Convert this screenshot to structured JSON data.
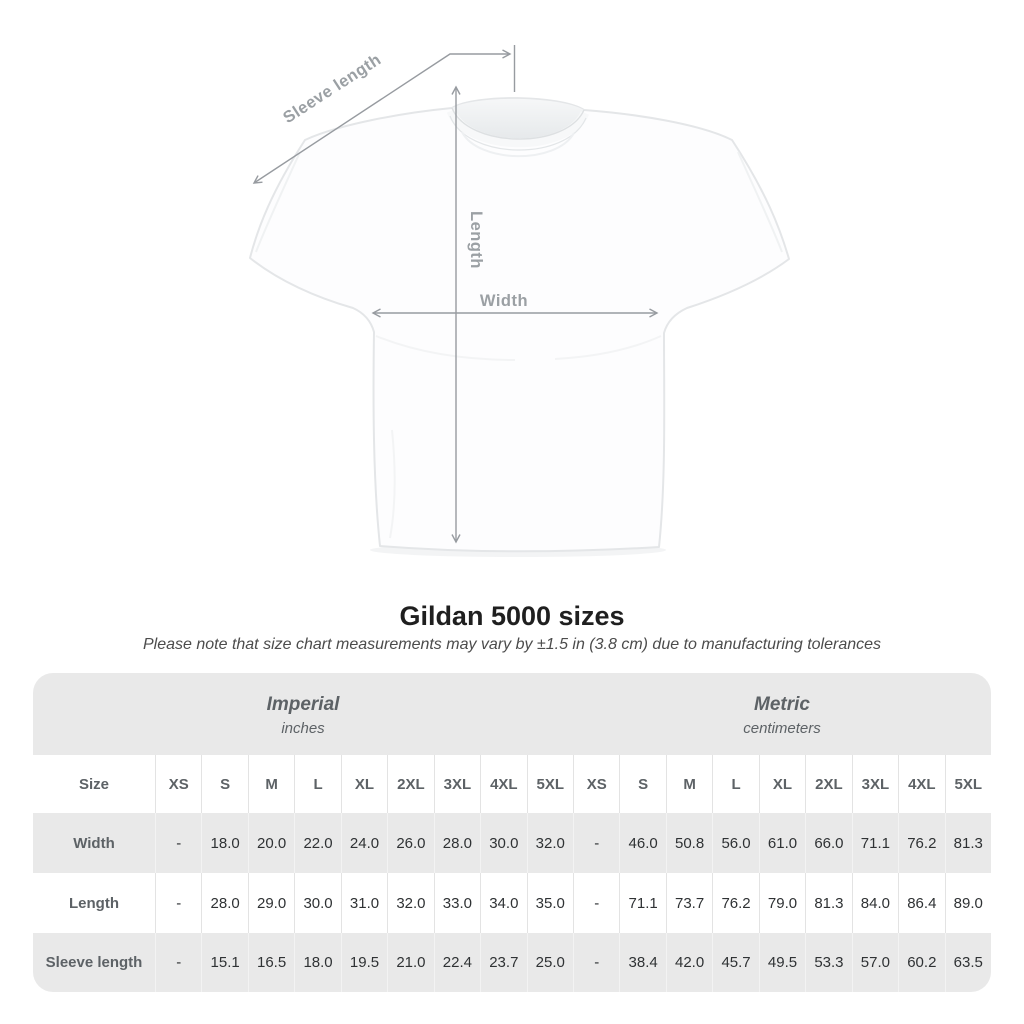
{
  "diagram": {
    "labels": {
      "sleeve_length": "Sleeve length",
      "length": "Length",
      "width": "Width"
    }
  },
  "header": {
    "title": "Gildan 5000 sizes",
    "subtitle": "Please note that size chart measurements may vary by ±1.5 in (3.8 cm) due to manufacturing tolerances"
  },
  "table": {
    "unit_groups": [
      {
        "name": "Imperial",
        "unit": "inches"
      },
      {
        "name": "Metric",
        "unit": "centimeters"
      }
    ],
    "size_header": "Size",
    "sizes": [
      "XS",
      "S",
      "M",
      "L",
      "XL",
      "2XL",
      "3XL",
      "4XL",
      "5XL"
    ],
    "rows": [
      {
        "label": "Width",
        "imperial": [
          "-",
          "18.0",
          "20.0",
          "22.0",
          "24.0",
          "26.0",
          "28.0",
          "30.0",
          "32.0"
        ],
        "metric": [
          "-",
          "46.0",
          "50.8",
          "56.0",
          "61.0",
          "66.0",
          "71.1",
          "76.2",
          "81.3"
        ]
      },
      {
        "label": "Length",
        "imperial": [
          "-",
          "28.0",
          "29.0",
          "30.0",
          "31.0",
          "32.0",
          "33.0",
          "34.0",
          "35.0"
        ],
        "metric": [
          "-",
          "71.1",
          "73.7",
          "76.2",
          "79.0",
          "81.3",
          "84.0",
          "86.4",
          "89.0"
        ]
      },
      {
        "label": "Sleeve length",
        "imperial": [
          "-",
          "15.1",
          "16.5",
          "18.0",
          "19.5",
          "21.0",
          "22.4",
          "23.7",
          "25.0"
        ],
        "metric": [
          "-",
          "38.4",
          "42.0",
          "45.7",
          "49.5",
          "53.3",
          "57.0",
          "60.2",
          "63.5"
        ]
      }
    ]
  },
  "chart_data": {
    "type": "table",
    "title": "Gildan 5000 sizes",
    "note": "Please note that size chart measurements may vary by ±1.5 in (3.8 cm) due to manufacturing tolerances",
    "sizes": [
      "XS",
      "S",
      "M",
      "L",
      "XL",
      "2XL",
      "3XL",
      "4XL",
      "5XL"
    ],
    "measurements": [
      {
        "name": "Width",
        "imperial_in": [
          null,
          18.0,
          20.0,
          22.0,
          24.0,
          26.0,
          28.0,
          30.0,
          32.0
        ],
        "metric_cm": [
          null,
          46.0,
          50.8,
          56.0,
          61.0,
          66.0,
          71.1,
          76.2,
          81.3
        ]
      },
      {
        "name": "Length",
        "imperial_in": [
          null,
          28.0,
          29.0,
          30.0,
          31.0,
          32.0,
          33.0,
          34.0,
          35.0
        ],
        "metric_cm": [
          null,
          71.1,
          73.7,
          76.2,
          79.0,
          81.3,
          84.0,
          86.4,
          89.0
        ]
      },
      {
        "name": "Sleeve length",
        "imperial_in": [
          null,
          15.1,
          16.5,
          18.0,
          19.5,
          21.0,
          22.4,
          23.7,
          25.0
        ],
        "metric_cm": [
          null,
          38.4,
          42.0,
          45.7,
          49.5,
          53.3,
          57.0,
          60.2,
          63.5
        ]
      }
    ]
  },
  "colors": {
    "table_band_gray": "#e9e9e9",
    "arrow_gray": "#979ba0",
    "diagram_label_gray": "#9ba0a4",
    "header_text": "#5d6266",
    "value_text": "#2f3234",
    "title_text": "#1f1f1f"
  }
}
